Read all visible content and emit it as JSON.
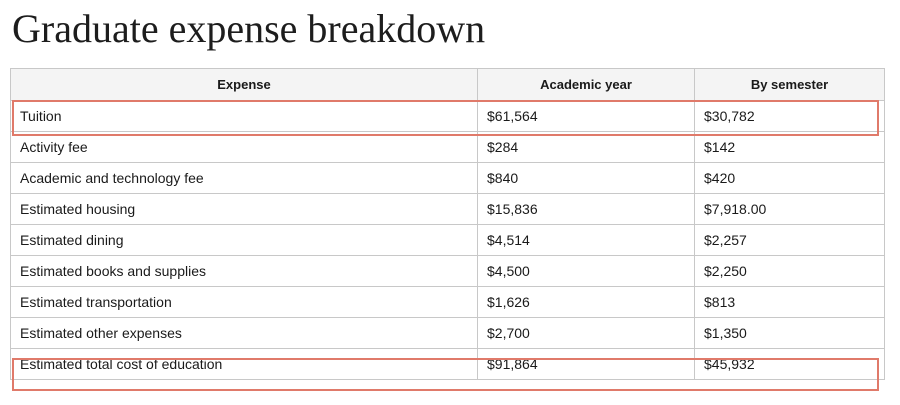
{
  "title": "Graduate expense breakdown",
  "table": {
    "headers": [
      "Expense",
      "Academic year",
      "By semester"
    ],
    "rows": [
      [
        "Tuition",
        "$61,564",
        "$30,782"
      ],
      [
        "Activity fee",
        "$284",
        "$142"
      ],
      [
        "Academic and technology fee",
        "$840",
        "$420"
      ],
      [
        "Estimated housing",
        "$15,836",
        "$7,918.00"
      ],
      [
        "Estimated dining",
        "$4,514",
        "$2,257"
      ],
      [
        "Estimated books and supplies",
        "$4,500",
        "$2,250"
      ],
      [
        "Estimated transportation",
        "$1,626",
        "$813"
      ],
      [
        "Estimated other expenses",
        "$2,700",
        "$1,350"
      ],
      [
        "Estimated total cost of education",
        "$91,864",
        "$45,932"
      ]
    ]
  },
  "highlights": {
    "color": "#e07a6a",
    "rows": [
      "Tuition",
      "Estimated total cost of education"
    ]
  }
}
